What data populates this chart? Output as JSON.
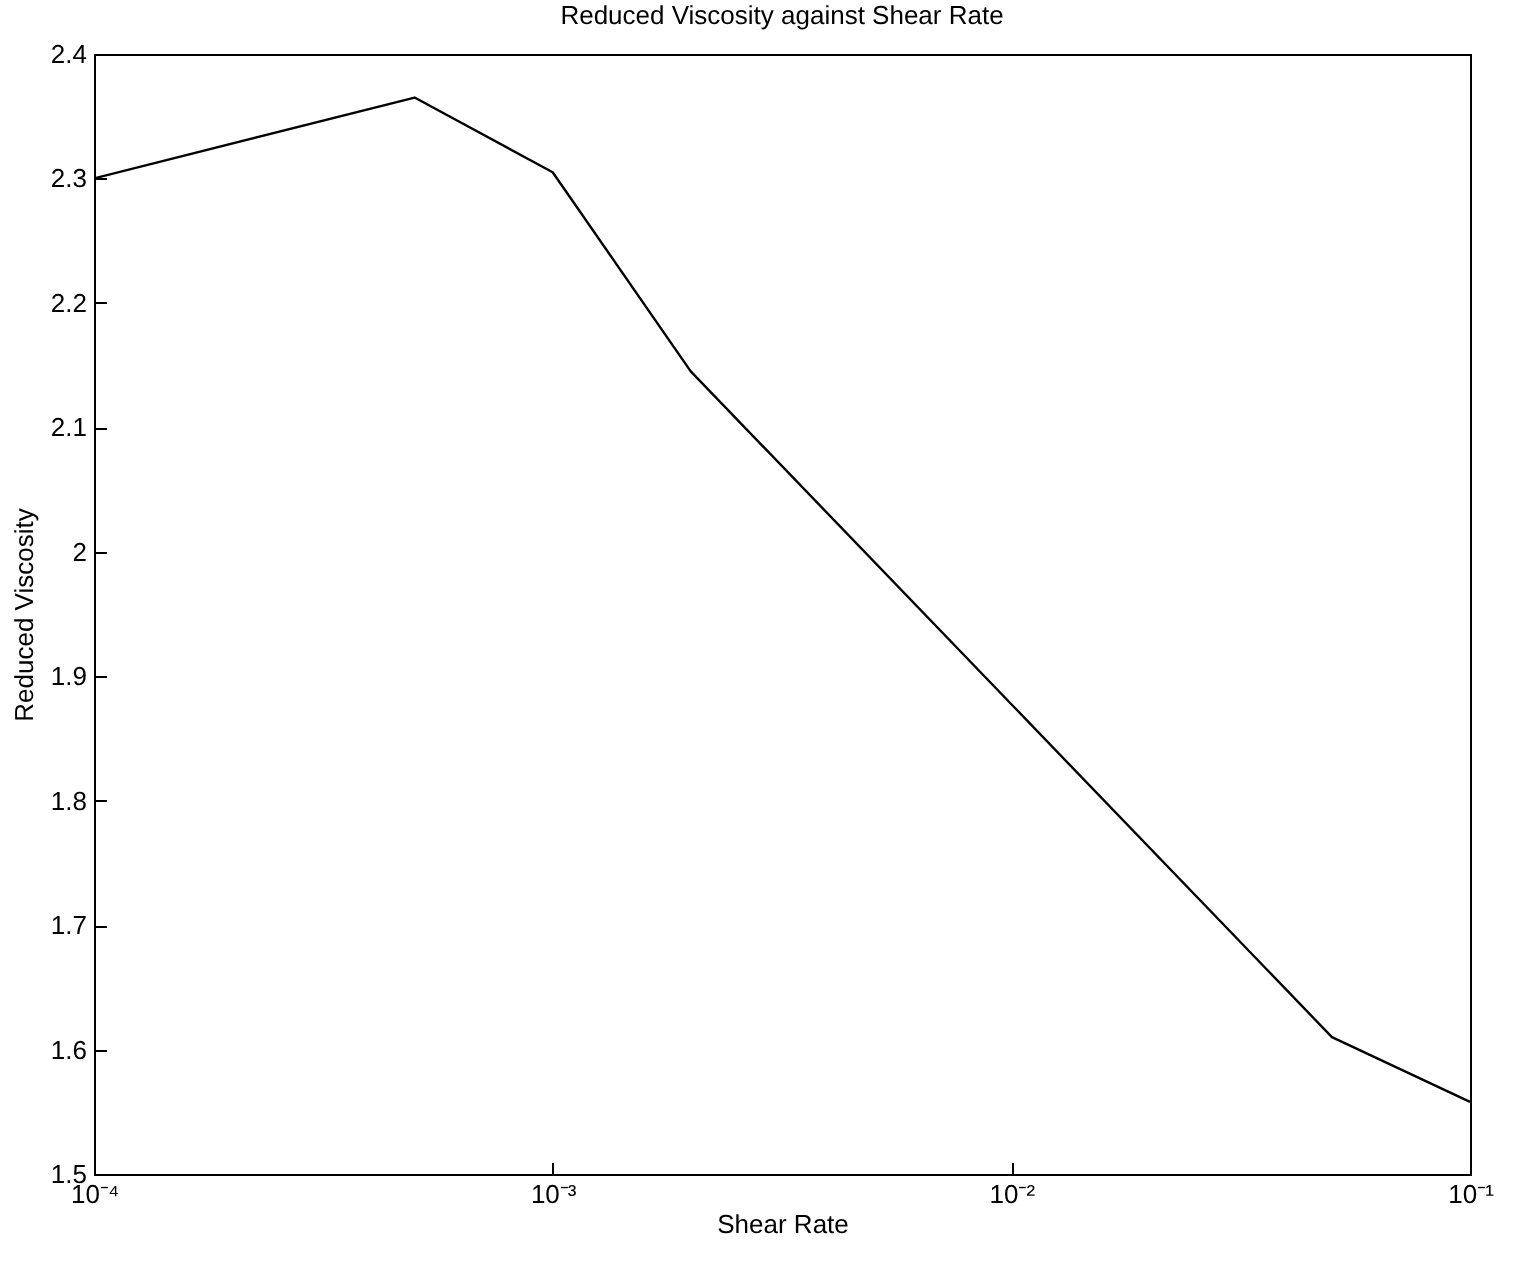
{
  "chart_data": {
    "type": "line",
    "title": "Reduced Viscosity against Shear Rate",
    "xlabel": "Shear Rate",
    "ylabel": "Reduced Viscosity",
    "x": [
      0.0001,
      0.0005,
      0.001,
      0.002,
      0.05,
      0.1
    ],
    "series": [
      {
        "color": "#000000",
        "values": [
          2.3,
          2.365,
          2.305,
          2.145,
          1.61,
          1.558
        ]
      }
    ],
    "log": "x",
    "xlim": [
      0.0001,
      0.1
    ],
    "xticks": [
      {
        "value": 0.0001,
        "label": "10⁻⁴"
      },
      {
        "value": 0.001,
        "label": "10⁻³"
      },
      {
        "value": 0.01,
        "label": "10⁻²"
      },
      {
        "value": 0.1,
        "label": "10⁻¹"
      }
    ],
    "ylim": [
      1.5,
      2.4
    ],
    "yticks": [
      1.5,
      1.6,
      1.7,
      1.8,
      1.9,
      2,
      2.1,
      2.2,
      2.3,
      2.4
    ],
    "grid": false
  }
}
